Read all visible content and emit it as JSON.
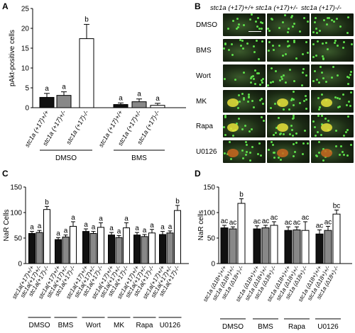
{
  "figure": {
    "panel_letters": {
      "a": "A",
      "b": "B",
      "c": "C",
      "d": "D"
    }
  },
  "panelB": {
    "columns": [
      "stc1a (+17)+/+",
      "stc1a (+17)+/-",
      "stc1a (+17)-/-"
    ],
    "rows": [
      "DMSO",
      "BMS",
      "Wort",
      "MK",
      "Rapa",
      "U0126"
    ]
  },
  "chart_data": [
    {
      "id": "A",
      "type": "bar",
      "ylabel": "pAkt-positive cells",
      "ylim": [
        0,
        25
      ],
      "yticks": [
        0,
        5,
        10,
        15,
        20,
        25
      ],
      "categories": [
        "stc1a (+17)+/+",
        "stc1a (+17)+/-",
        "stc1a (+17)-/-",
        "stc1a (+17)+/+",
        "stc1a (+17)+/-",
        "stc1a (+17)-/-"
      ],
      "groups": [
        "DMSO",
        "BMS"
      ],
      "values": [
        2.6,
        3.1,
        17.4,
        0.8,
        1.5,
        0.6
      ],
      "errors": [
        1.0,
        0.9,
        3.6,
        0.4,
        0.7,
        0.5
      ],
      "letters": [
        "a",
        "a",
        "b",
        "a",
        "a",
        "a"
      ],
      "fills": [
        "#111111",
        "#888888",
        "#ffffff",
        "#111111",
        "#888888",
        "#ffffff"
      ]
    },
    {
      "id": "C",
      "type": "bar",
      "ylabel": "NaR Cells",
      "ylim": [
        0,
        150
      ],
      "yticks": [
        0,
        50,
        100,
        150
      ],
      "categories_per_group": [
        "stc1a(+17)+/+",
        "stc1a(+17)+/-",
        "stc1a(+17)-/-"
      ],
      "groups": [
        "DMSO",
        "BMS",
        "Wort",
        "MK",
        "Rapa",
        "U0126"
      ],
      "values": [
        [
          59,
          61,
          106
        ],
        [
          47,
          52,
          73
        ],
        [
          63,
          59,
          71
        ],
        [
          56,
          51,
          70
        ],
        [
          56,
          53,
          60
        ],
        [
          57,
          60,
          104
        ]
      ],
      "errors": [
        [
          4,
          4,
          6
        ],
        [
          4,
          4,
          9
        ],
        [
          5,
          4,
          9
        ],
        [
          5,
          4,
          10
        ],
        [
          5,
          4,
          7
        ],
        [
          6,
          4,
          10
        ]
      ],
      "letters": [
        [
          "a",
          "a",
          "b"
        ],
        [
          "a",
          "a",
          "a"
        ],
        [
          "a",
          "a",
          "a"
        ],
        [
          "a",
          "a",
          "a"
        ],
        [
          "a",
          "a",
          "a"
        ],
        [
          "a",
          "a",
          "b"
        ]
      ],
      "fills": [
        "#111111",
        "#888888",
        "#ffffff"
      ]
    },
    {
      "id": "D",
      "type": "bar",
      "ylabel": "NaR cells",
      "ylim": [
        0,
        150
      ],
      "yticks": [
        0,
        50,
        100,
        150
      ],
      "categories_per_group": [
        "stc1a (Δ18+)+/+",
        "stc1a (Δ18+)+/-",
        "stc1a (Δ18+)-/-"
      ],
      "groups": [
        "DMSO",
        "BMS",
        "Rapa",
        "U0126"
      ],
      "values": [
        [
          70,
          68,
          118
        ],
        [
          68,
          70,
          75
        ],
        [
          65,
          66,
          65
        ],
        [
          58,
          65,
          97
        ]
      ],
      "errors": [
        [
          5,
          4,
          9
        ],
        [
          6,
          5,
          7
        ],
        [
          7,
          6,
          17
        ],
        [
          8,
          8,
          8
        ]
      ],
      "letters": [
        [
          "ac",
          "ac",
          "b"
        ],
        [
          "ac",
          "ac",
          "ac"
        ],
        [
          "ac",
          "ac",
          "ac"
        ],
        [
          "ac",
          "ac",
          "bc"
        ]
      ],
      "fills": [
        "#111111",
        "#888888",
        "#ffffff"
      ]
    }
  ]
}
